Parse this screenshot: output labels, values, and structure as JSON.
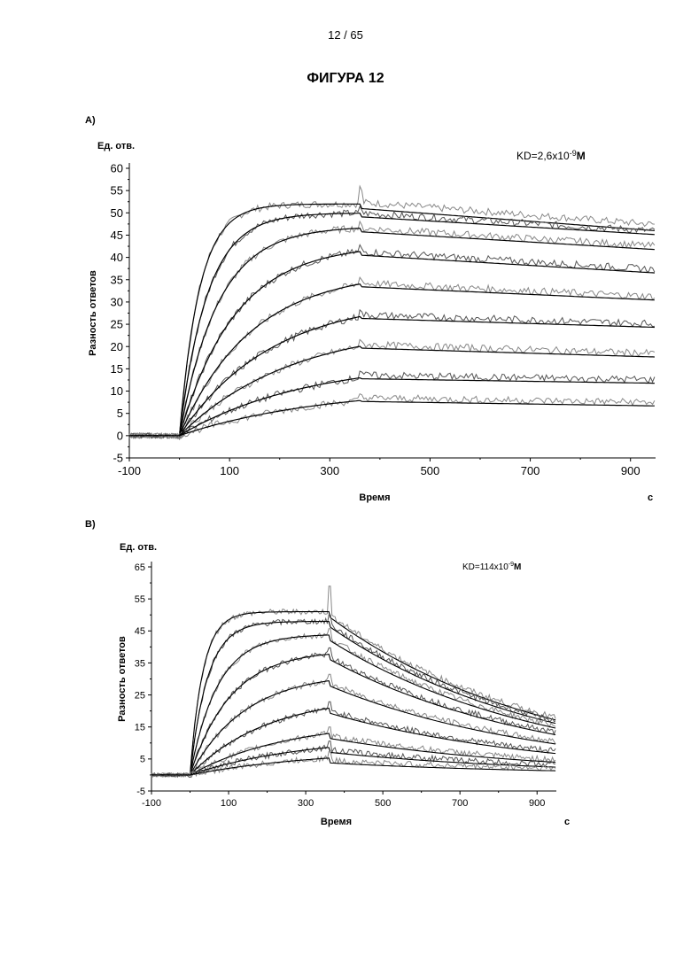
{
  "page": {
    "page_number": "12 / 65",
    "figure_title": "ФИГУРА 12"
  },
  "chart_data": [
    {
      "panel": "A)",
      "type": "line",
      "ylabel_top": "Ед. отв.",
      "ylabel": "Разность ответов",
      "xlabel": "Время",
      "xunit": "с",
      "annotation": "KD=2,6x10",
      "annotation_exp": "-9",
      "annotation_unit": "M",
      "xlim": [
        -100,
        950
      ],
      "ylim": [
        -5,
        60
      ],
      "xticks": [
        -100,
        100,
        300,
        500,
        700,
        900
      ],
      "yticks": [
        -5,
        0,
        5,
        10,
        15,
        20,
        25,
        30,
        35,
        40,
        45,
        50,
        55,
        60
      ],
      "injection_start": 0,
      "injection_end": 360,
      "series": [
        {
          "plateau": 52,
          "rate": 0.025,
          "dissociation": 5,
          "noisy_offset": 2
        },
        {
          "plateau": 50,
          "rate": 0.018,
          "dissociation": 4,
          "noisy_offset": 0
        },
        {
          "plateau": 47,
          "rate": 0.013,
          "dissociation": 4,
          "noisy_offset": 0
        },
        {
          "plateau": 43,
          "rate": 0.009,
          "dissociation": 4,
          "noisy_offset": 0
        },
        {
          "plateau": 37,
          "rate": 0.007,
          "dissociation": 3,
          "noisy_offset": 0
        },
        {
          "plateau": 31,
          "rate": 0.0055,
          "dissociation": 2,
          "noisy_offset": 0
        },
        {
          "plateau": 25,
          "rate": 0.0045,
          "dissociation": 2,
          "noisy_offset": 0
        },
        {
          "plateau": 17,
          "rate": 0.004,
          "dissociation": 1,
          "noisy_offset": 0
        },
        {
          "plateau": 11,
          "rate": 0.0035,
          "dissociation": 1,
          "noisy_offset": 0
        }
      ]
    },
    {
      "panel": "B)",
      "type": "line",
      "ylabel_top": "Ед. отв.",
      "ylabel": "Разность ответов",
      "xlabel": "Время",
      "xunit": "с",
      "annotation": "KD=114x10",
      "annotation_exp": "-9",
      "annotation_unit": "M",
      "xlim": [
        -100,
        950
      ],
      "ylim": [
        -5,
        65
      ],
      "xticks": [
        -100,
        100,
        300,
        500,
        700,
        900
      ],
      "yticks": [
        -5,
        5,
        15,
        25,
        35,
        45,
        55,
        65
      ],
      "injection_start": 0,
      "injection_end": 360,
      "series": [
        {
          "plateau": 51,
          "rate": 0.03,
          "koff": 0.0018
        },
        {
          "plateau": 48,
          "rate": 0.022,
          "koff": 0.0018
        },
        {
          "plateau": 44,
          "rate": 0.014,
          "koff": 0.0018
        },
        {
          "plateau": 39,
          "rate": 0.0095,
          "koff": 0.0018
        },
        {
          "plateau": 32,
          "rate": 0.007,
          "koff": 0.0018
        },
        {
          "plateau": 25,
          "rate": 0.005,
          "koff": 0.0018
        },
        {
          "plateau": 17,
          "rate": 0.004,
          "koff": 0.0018
        },
        {
          "plateau": 12,
          "rate": 0.0035,
          "koff": 0.0018
        },
        {
          "plateau": 8,
          "rate": 0.003,
          "koff": 0.0018
        }
      ]
    }
  ]
}
